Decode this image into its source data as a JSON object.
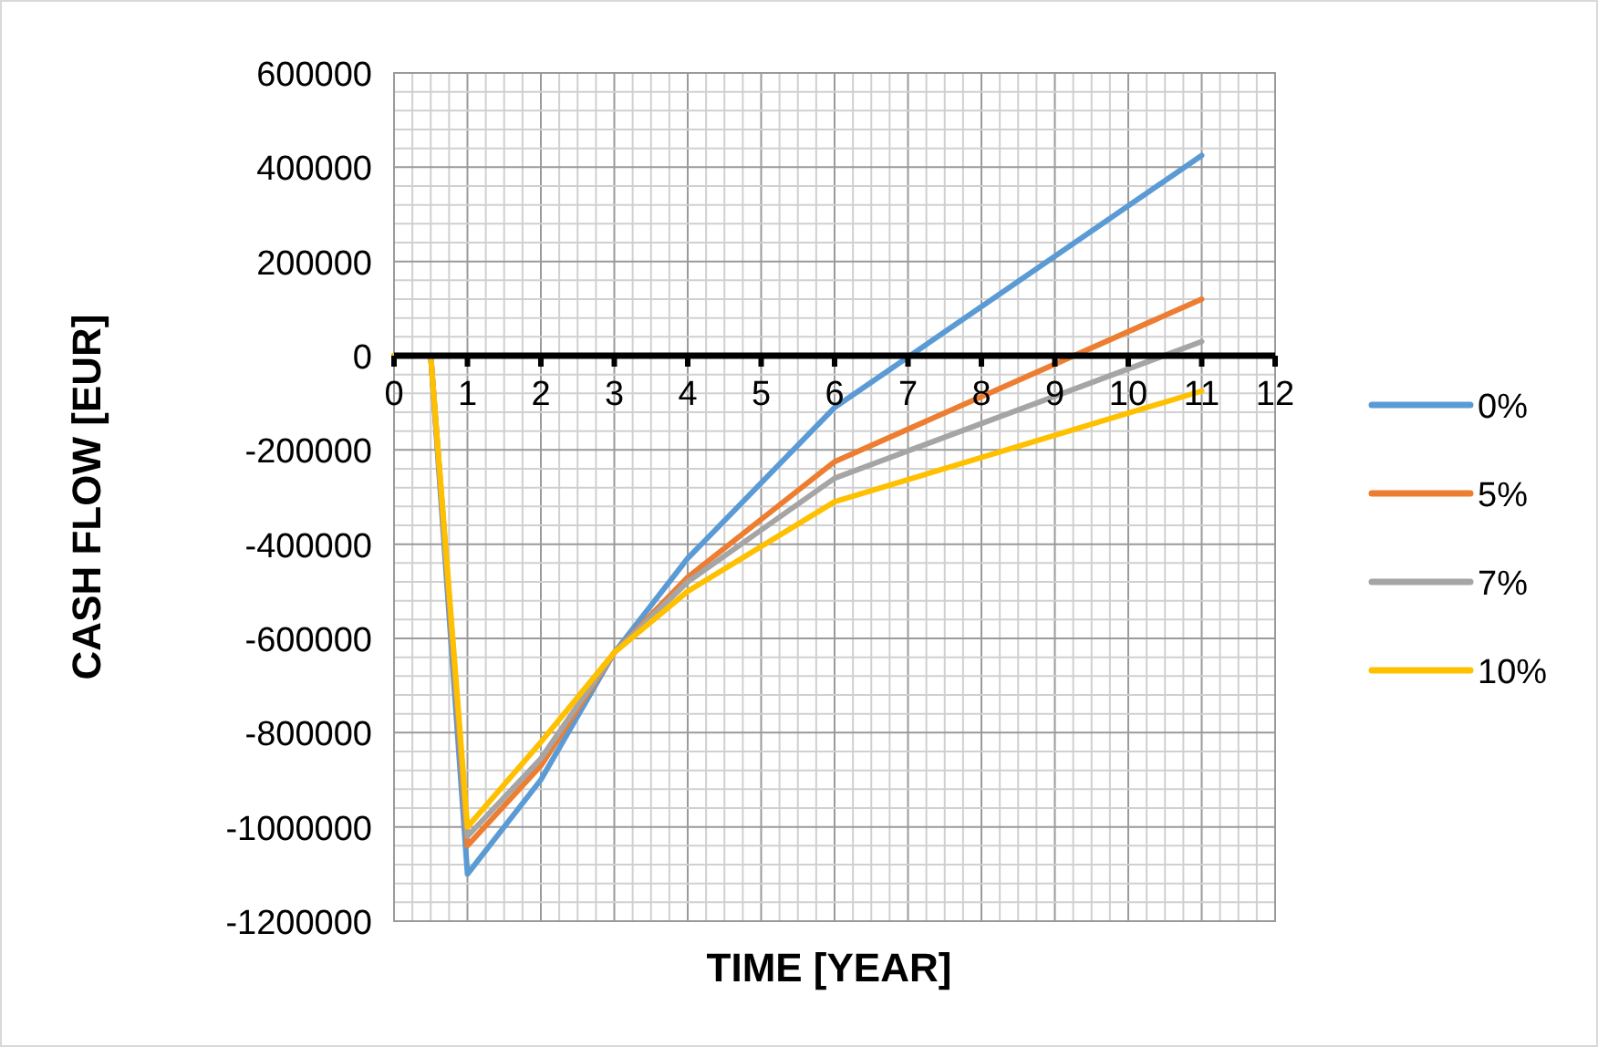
{
  "chart_data": {
    "type": "line",
    "xlabel": "TIME [YEAR]",
    "ylabel": "CASH FLOW [EUR]",
    "x": [
      0,
      0.5,
      1,
      2,
      3,
      4,
      6,
      11
    ],
    "series": [
      {
        "name": "0%",
        "color": "#5b9bd5",
        "values": [
          0,
          0,
          -1100000,
          -900000,
          -630000,
          -430000,
          -110000,
          425000
        ]
      },
      {
        "name": "5%",
        "color": "#ed7d31",
        "values": [
          0,
          0,
          -1040000,
          -870000,
          -630000,
          -470000,
          -225000,
          120000
        ]
      },
      {
        "name": "7%",
        "color": "#a5a5a5",
        "values": [
          0,
          0,
          -1020000,
          -855000,
          -630000,
          -480000,
          -260000,
          30000
        ]
      },
      {
        "name": "10%",
        "color": "#ffc000",
        "values": [
          0,
          0,
          -1000000,
          -820000,
          -630000,
          -500000,
          -310000,
          -75000
        ]
      }
    ],
    "xlim": [
      0,
      12
    ],
    "xticks": [
      0,
      1,
      2,
      3,
      4,
      5,
      6,
      7,
      8,
      9,
      10,
      11,
      12
    ],
    "ylim": [
      -1200000,
      600000
    ],
    "yticks": [
      -1200000,
      -1000000,
      -800000,
      -600000,
      -400000,
      -200000,
      0,
      200000,
      400000,
      600000
    ],
    "grid": true,
    "legend": "right",
    "marker": "none",
    "line_style": "solid"
  }
}
